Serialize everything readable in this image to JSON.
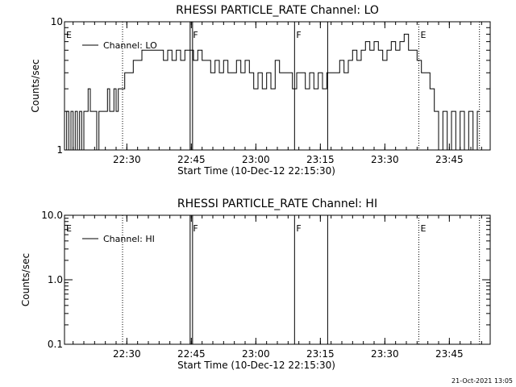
{
  "timestamp": "21-Oct-2021 13:05",
  "chart_data": [
    {
      "type": "line",
      "title": "RHESSI PARTICLE_RATE Channel: LO",
      "xlabel": "Start Time (10-Dec-12 22:15:30)",
      "ylabel": "Counts/sec",
      "yscale": "log",
      "ylim": [
        1,
        10
      ],
      "xlim": [
        0,
        99
      ],
      "x_units": "minutes after 22:15:30",
      "xtick_labels": [
        "22:30",
        "22:45",
        "23:00",
        "23:15",
        "23:30",
        "23:45"
      ],
      "ytick_labels": [
        "1",
        "10"
      ],
      "legend": {
        "label": "Channel: LO",
        "position": "top-left"
      },
      "flags": [
        {
          "label": "E",
          "t": 0,
          "style": "none"
        },
        {
          "label": "F",
          "t": 29.5,
          "style": "double-solid"
        },
        {
          "label": "F",
          "t": 53.5,
          "style": "solid"
        },
        {
          "label": "",
          "t": 61.2,
          "style": "solid"
        },
        {
          "label": "E",
          "t": 82.4,
          "style": "dotted"
        },
        {
          "label": "",
          "t": 13.5,
          "style": "dotted"
        },
        {
          "label": "",
          "t": 96.5,
          "style": "dotted"
        }
      ],
      "series": [
        {
          "name": "Channel: LO",
          "x": [
            0,
            0.5,
            1,
            1.5,
            2,
            2.5,
            3,
            3.5,
            4,
            4.5,
            5,
            5.5,
            6,
            6.5,
            7,
            7.5,
            8,
            8.5,
            9,
            9.5,
            10,
            10.5,
            11,
            11.5,
            12,
            12.5,
            13,
            13.5,
            14,
            15,
            16,
            17,
            18,
            19,
            20,
            21,
            22,
            23,
            24,
            25,
            26,
            27,
            28,
            29,
            30,
            31,
            32,
            33,
            34,
            35,
            36,
            37,
            38,
            39,
            40,
            41,
            42,
            43,
            44,
            45,
            46,
            47,
            48,
            49,
            50,
            51,
            52,
            53,
            54,
            55,
            56,
            57,
            58,
            59,
            60,
            61,
            62,
            63,
            64,
            65,
            66,
            67,
            68,
            69,
            70,
            71,
            72,
            73,
            74,
            75,
            76,
            77,
            78,
            79,
            80,
            81,
            82,
            83,
            84,
            85,
            86,
            87,
            88,
            89,
            90,
            91,
            92,
            93,
            94,
            95,
            96
          ],
          "y": [
            1,
            2,
            1,
            2,
            1,
            2,
            1,
            2,
            1,
            2,
            2,
            3,
            2,
            2,
            2,
            1,
            2,
            2,
            2,
            2,
            3,
            2,
            2,
            3,
            2,
            3,
            3,
            3,
            4,
            4,
            5,
            5,
            6,
            6,
            6,
            6,
            6,
            5,
            6,
            5,
            6,
            5,
            6,
            6,
            5,
            6,
            5,
            5,
            4,
            5,
            4,
            5,
            4,
            4,
            5,
            4,
            5,
            4,
            3,
            4,
            3,
            4,
            3,
            5,
            4,
            4,
            4,
            3,
            4,
            4,
            3,
            4,
            3,
            4,
            3,
            4,
            4,
            4,
            5,
            4,
            5,
            6,
            5,
            6,
            7,
            6,
            7,
            6,
            5,
            6,
            7,
            6,
            7,
            8,
            6,
            6,
            5,
            4,
            4,
            3,
            2,
            1,
            2,
            1,
            2,
            1,
            2,
            1,
            2,
            1,
            2
          ]
        }
      ]
    },
    {
      "type": "line",
      "title": "RHESSI PARTICLE_RATE Channel: HI",
      "xlabel": "Start Time (10-Dec-12 22:15:30)",
      "ylabel": "Counts/sec",
      "yscale": "log",
      "ylim": [
        0.1,
        10
      ],
      "xlim": [
        0,
        99
      ],
      "x_units": "minutes after 22:15:30",
      "xtick_labels": [
        "22:30",
        "22:45",
        "23:00",
        "23:15",
        "23:30",
        "23:45"
      ],
      "ytick_labels": [
        "0.1",
        "1.0",
        "10.0"
      ],
      "legend": {
        "label": "Channel: HI",
        "position": "top-left"
      },
      "flags": [
        {
          "label": "E",
          "t": 0,
          "style": "none"
        },
        {
          "label": "F",
          "t": 29.5,
          "style": "double-solid"
        },
        {
          "label": "F",
          "t": 53.5,
          "style": "solid"
        },
        {
          "label": "",
          "t": 61.2,
          "style": "solid"
        },
        {
          "label": "E",
          "t": 82.4,
          "style": "dotted"
        },
        {
          "label": "",
          "t": 13.5,
          "style": "dotted"
        },
        {
          "label": "",
          "t": 96.5,
          "style": "dotted"
        }
      ],
      "series": [
        {
          "name": "Channel: HI",
          "x": [],
          "y": []
        }
      ]
    }
  ]
}
